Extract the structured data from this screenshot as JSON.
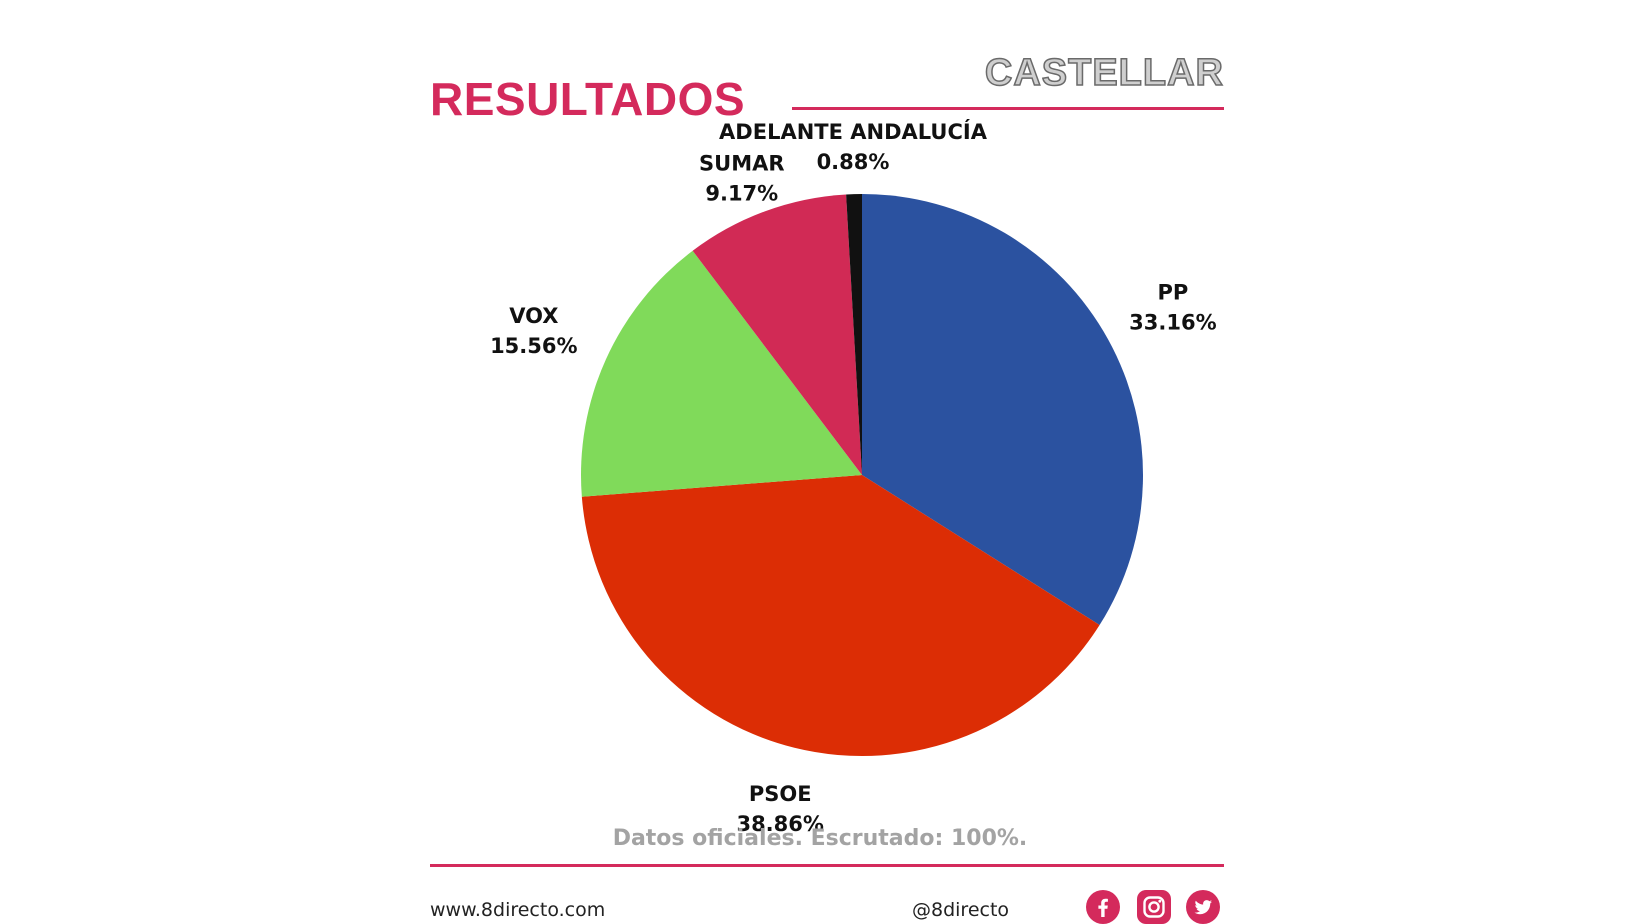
{
  "header": {
    "title": "RESULTADOS",
    "location": "CASTELLAR"
  },
  "chart_data": {
    "type": "pie",
    "slices": [
      {
        "label": "PP",
        "value": 33.16,
        "value_label": "33.16%",
        "color": "#2b52a0"
      },
      {
        "label": "PSOE",
        "value": 38.86,
        "value_label": "38.86%",
        "color": "#dc2d05"
      },
      {
        "label": "VOX",
        "value": 15.56,
        "value_label": "15.56%",
        "color": "#80da5a"
      },
      {
        "label": "SUMAR",
        "value": 9.17,
        "value_label": "9.17%",
        "color": "#d12a55"
      },
      {
        "label": "ADELANTE ANDALUCÍA",
        "value": 0.88,
        "value_label": "0.88%",
        "color": "#111111"
      }
    ]
  },
  "source_note": "Datos oficiales. Escrutado: 100%.",
  "footer": {
    "website": "www.8directo.com",
    "handle": "@8directo",
    "social_icons": [
      {
        "name": "facebook-icon",
        "color": "#d42a5c"
      },
      {
        "name": "instagram-icon",
        "color": "#d42a5c"
      },
      {
        "name": "twitter-icon",
        "color": "#d42a5c"
      }
    ]
  }
}
